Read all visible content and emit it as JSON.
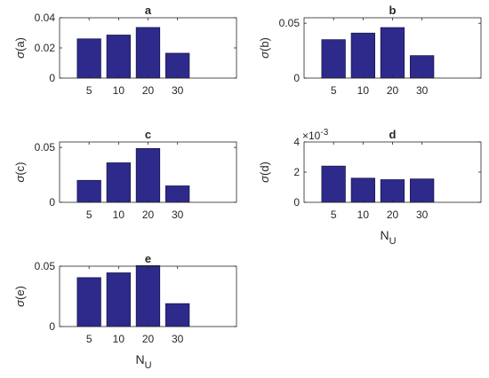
{
  "colors": {
    "bar": "#2e2a8c",
    "bar_edge": "#1a1a4a",
    "axis": "#262626"
  },
  "chart_data": [
    {
      "type": "bar",
      "title": "a",
      "ylabel_sym": "σ",
      "ylabel_rest": "(a)",
      "categories": [
        "5",
        "10",
        "20",
        "30"
      ],
      "values": [
        0.026,
        0.0285,
        0.0335,
        0.0165
      ],
      "ylim": [
        0,
        0.04
      ],
      "yticks": [
        0,
        0.02,
        0.04
      ],
      "ytick_labels": [
        "0",
        "0.02",
        "0.04"
      ],
      "xlabel": "",
      "xlabel_sub": "",
      "exponent": ""
    },
    {
      "type": "bar",
      "title": "b",
      "ylabel_sym": "σ",
      "ylabel_rest": "(b)",
      "categories": [
        "5",
        "10",
        "20",
        "30"
      ],
      "values": [
        0.035,
        0.041,
        0.046,
        0.0205
      ],
      "ylim": [
        0,
        0.055
      ],
      "yticks": [
        0,
        0.05
      ],
      "ytick_labels": [
        "0",
        "0.05"
      ],
      "xlabel": "",
      "xlabel_sub": "",
      "exponent": ""
    },
    {
      "type": "bar",
      "title": "c",
      "ylabel_sym": "σ",
      "ylabel_rest": "(c)",
      "categories": [
        "5",
        "10",
        "20",
        "30"
      ],
      "values": [
        0.02,
        0.036,
        0.049,
        0.015
      ],
      "ylim": [
        0,
        0.055
      ],
      "yticks": [
        0,
        0.05
      ],
      "ytick_labels": [
        "0",
        "0.05"
      ],
      "xlabel": "",
      "xlabel_sub": "",
      "exponent": ""
    },
    {
      "type": "bar",
      "title": "d",
      "ylabel_sym": "σ",
      "ylabel_rest": "(d)",
      "categories": [
        "5",
        "10",
        "20",
        "30"
      ],
      "values": [
        0.0024,
        0.0016,
        0.0015,
        0.00155
      ],
      "ylim": [
        0,
        0.004
      ],
      "yticks": [
        0,
        0.002,
        0.004
      ],
      "ytick_labels": [
        "0",
        "2",
        "4"
      ],
      "xlabel": "N",
      "xlabel_sub": "U",
      "exponent": "×10",
      "exponent_power": "-3"
    },
    {
      "type": "bar",
      "title": "e",
      "ylabel_sym": "σ",
      "ylabel_rest": "(e)",
      "categories": [
        "5",
        "10",
        "20",
        "30"
      ],
      "values": [
        0.0405,
        0.0445,
        0.0505,
        0.019
      ],
      "ylim": [
        0,
        0.05
      ],
      "yticks": [
        0,
        0.05
      ],
      "ytick_labels": [
        "0",
        "0.05"
      ],
      "xlabel": "N",
      "xlabel_sub": "U",
      "exponent": ""
    }
  ]
}
